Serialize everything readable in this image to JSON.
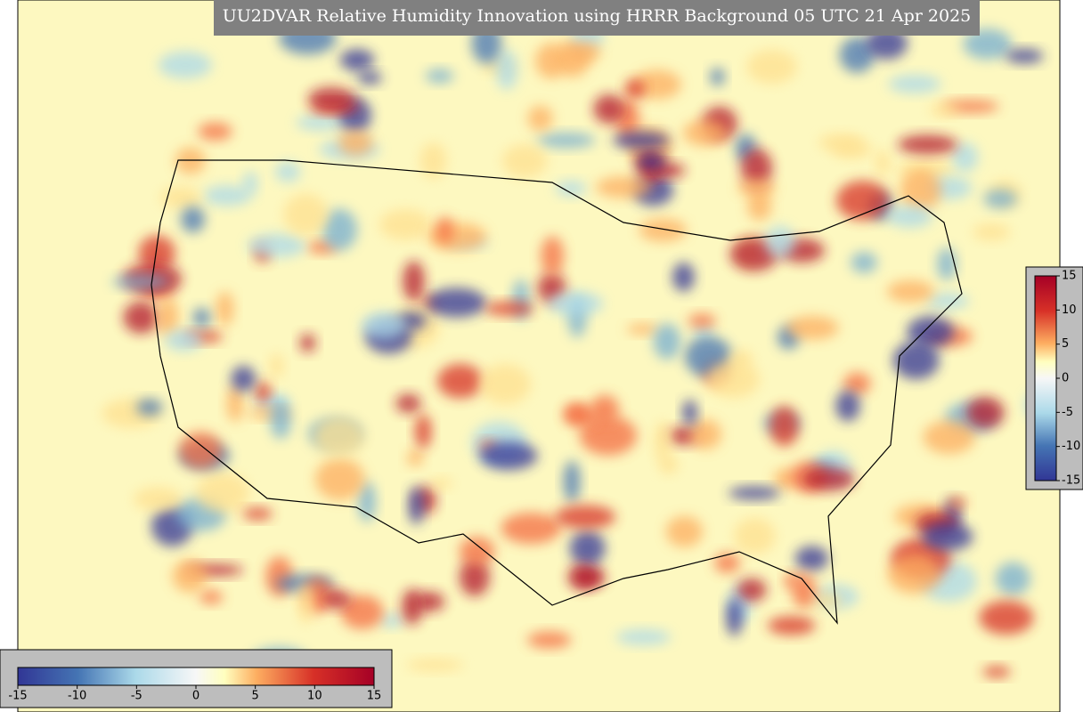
{
  "title": "UU2DVAR Relative Humidity Innovation using HRRR Background 05 UTC 21 Apr 2025",
  "colorbar_right": {
    "ticks": [
      15,
      10,
      5,
      0,
      -5,
      -10,
      -15
    ]
  },
  "colorbar_bottom": {
    "ticks": [
      -15,
      -10,
      -5,
      0,
      5,
      10,
      15
    ]
  }
}
